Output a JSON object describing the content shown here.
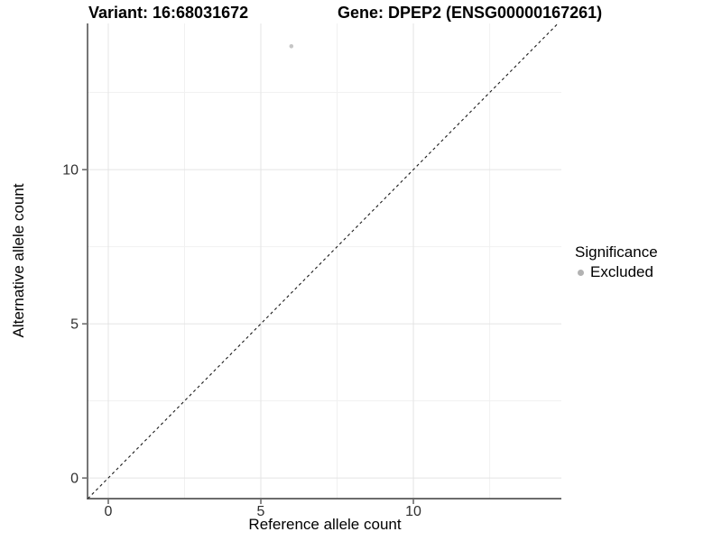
{
  "chart_data": {
    "type": "scatter",
    "title_left": "Variant: 16:68031672",
    "title_right": "Gene: DPEP2 (ENSG00000167261)",
    "xlabel": "Reference allele count",
    "ylabel": "Alternative allele count",
    "xlim": [
      -0.68,
      14.85
    ],
    "ylim": [
      -0.67,
      14.74
    ],
    "x_major_ticks": [
      0,
      5,
      10
    ],
    "y_major_ticks": [
      0,
      5,
      10
    ],
    "x_minor_ticks": [
      2.5,
      7.5,
      12.5
    ],
    "y_minor_ticks": [
      2.5,
      7.5,
      12.5
    ],
    "grid": true,
    "series": [
      {
        "name": "Excluded",
        "color": "#c6c6c6",
        "points": [
          {
            "x": 6,
            "y": 14
          }
        ]
      }
    ],
    "reference_line": {
      "type": "identity",
      "style": "dashed",
      "color": "#1a1a1a"
    },
    "legend": {
      "position": "right",
      "title": "Significance",
      "items": [
        {
          "label": "Excluded",
          "color": "#b2b2b2"
        }
      ]
    },
    "style": {
      "grid_major": "#e4e4e4",
      "grid_minor": "#f1f1f1",
      "axis_line": "#3c3c3c",
      "tick_label": "#303030",
      "point_radius": 2.3,
      "background": "#ffffff"
    }
  }
}
